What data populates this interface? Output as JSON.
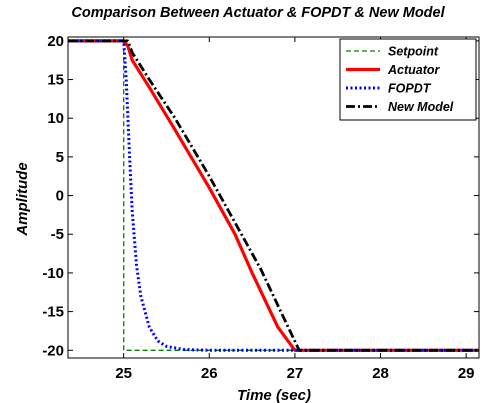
{
  "chart_data": {
    "type": "line",
    "title": "Comparison Between Actuator & FOPDT & New Model",
    "xlabel": "Time (sec)",
    "ylabel": "Amplitude",
    "xlim": [
      24.35,
      29.15
    ],
    "ylim": [
      -21,
      20.5
    ],
    "xticks": [
      25,
      26,
      27,
      28,
      29
    ],
    "yticks": [
      20,
      15,
      10,
      5,
      0,
      -5,
      -10,
      -15,
      -20
    ],
    "grid": false,
    "legend_position": "top-right",
    "series": [
      {
        "name": "Setpoint",
        "color": "#008000",
        "style": "dashed",
        "x": [
          24.35,
          25.0,
          25.0,
          29.15
        ],
        "y": [
          20,
          20,
          -20,
          -20
        ]
      },
      {
        "name": "Actuator",
        "color": "#ff0000",
        "style": "solid",
        "x": [
          24.35,
          25.0,
          25.05,
          25.1,
          25.3,
          25.6,
          26.0,
          26.3,
          26.5,
          26.8,
          27.0,
          29.15
        ],
        "y": [
          20,
          20,
          19.3,
          17.5,
          14.0,
          8.5,
          1.0,
          -5.0,
          -10.0,
          -17.0,
          -20.0,
          -20.0
        ]
      },
      {
        "name": "FOPDT",
        "color": "#0000ff",
        "style": "dotted",
        "x": [
          24.35,
          25.0,
          25.03,
          25.07,
          25.1,
          25.15,
          25.2,
          25.3,
          25.4,
          25.5,
          25.7,
          26.0,
          29.15
        ],
        "y": [
          20,
          20,
          15.0,
          5.0,
          -2.0,
          -9.0,
          -13.0,
          -17.0,
          -18.8,
          -19.5,
          -19.9,
          -20.0,
          -20.0
        ]
      },
      {
        "name": "New Model",
        "color": "#000000",
        "style": "dashdot",
        "x": [
          24.35,
          25.0,
          25.05,
          25.1,
          25.3,
          25.6,
          26.0,
          26.3,
          26.6,
          26.9,
          27.05,
          29.15
        ],
        "y": [
          20,
          20,
          20,
          18.5,
          15.0,
          10.0,
          2.5,
          -3.5,
          -9.5,
          -16.5,
          -20.0,
          -20.0
        ]
      }
    ]
  }
}
